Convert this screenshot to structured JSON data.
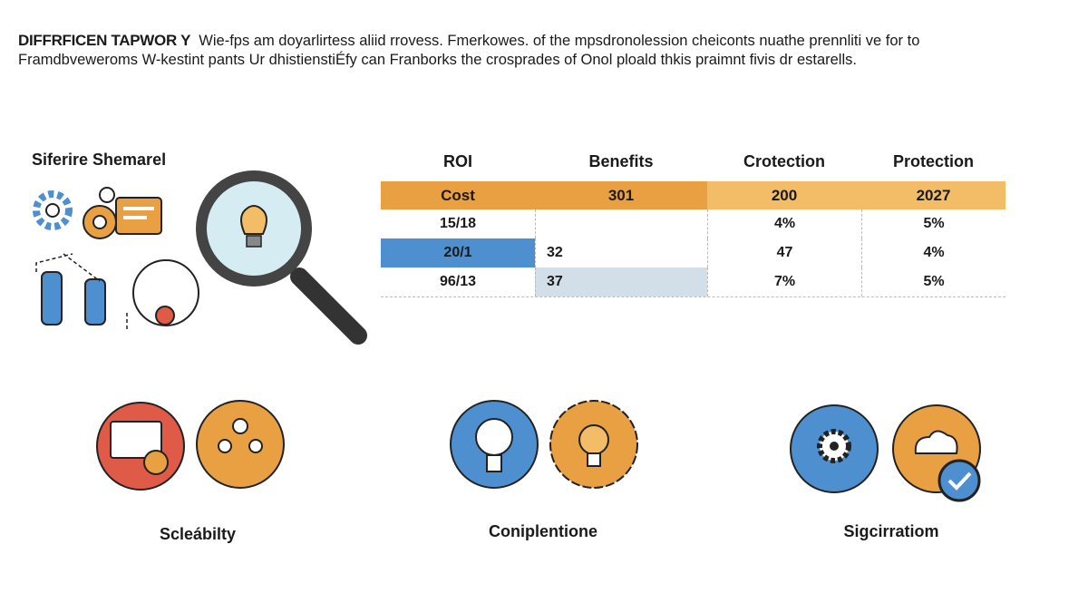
{
  "intro": {
    "heading": "DIFFRFICEN TAPWOR Y",
    "line1": "Wie-fps am doyarlirtess aliid rrovess. Fmerkowes. of the mpsdronolession cheiconts nuathe prennliti ve for to",
    "line2": "Framdbveweroms W-kestint pants Ur dhistienstiÉfy can Franborks the crosprades of Onol ploald thkis praimnt fivis dr estarells."
  },
  "section_title": "Siferire Shemarel",
  "table": {
    "headers": [
      "ROI",
      "Benefits",
      "Crotection",
      "Protection"
    ],
    "highlight_row": [
      "Cost",
      "301",
      "200",
      "2027"
    ],
    "rows": [
      [
        "15/18",
        "",
        "4%",
        "5%"
      ],
      [
        "20/1",
        "32",
        "47",
        "4%"
      ],
      [
        "96/13",
        "37",
        "7%",
        "5%"
      ]
    ]
  },
  "features": [
    {
      "label": "Scleábilty",
      "icons": [
        "dashboard-gear-icon",
        "team-icon"
      ]
    },
    {
      "label": "Coniplentione",
      "icons": [
        "lightbulb-icon",
        "lightbulb-gear-icon"
      ]
    },
    {
      "label": "Sigcirratiom",
      "icons": [
        "gear-icon",
        "cloud-check-icon"
      ]
    }
  ],
  "colors": {
    "orange": "#e8a043",
    "light_orange": "#f2bd66",
    "blue": "#4e8fd0",
    "red": "#e05a48",
    "light_blue": "#d3dfe8"
  }
}
